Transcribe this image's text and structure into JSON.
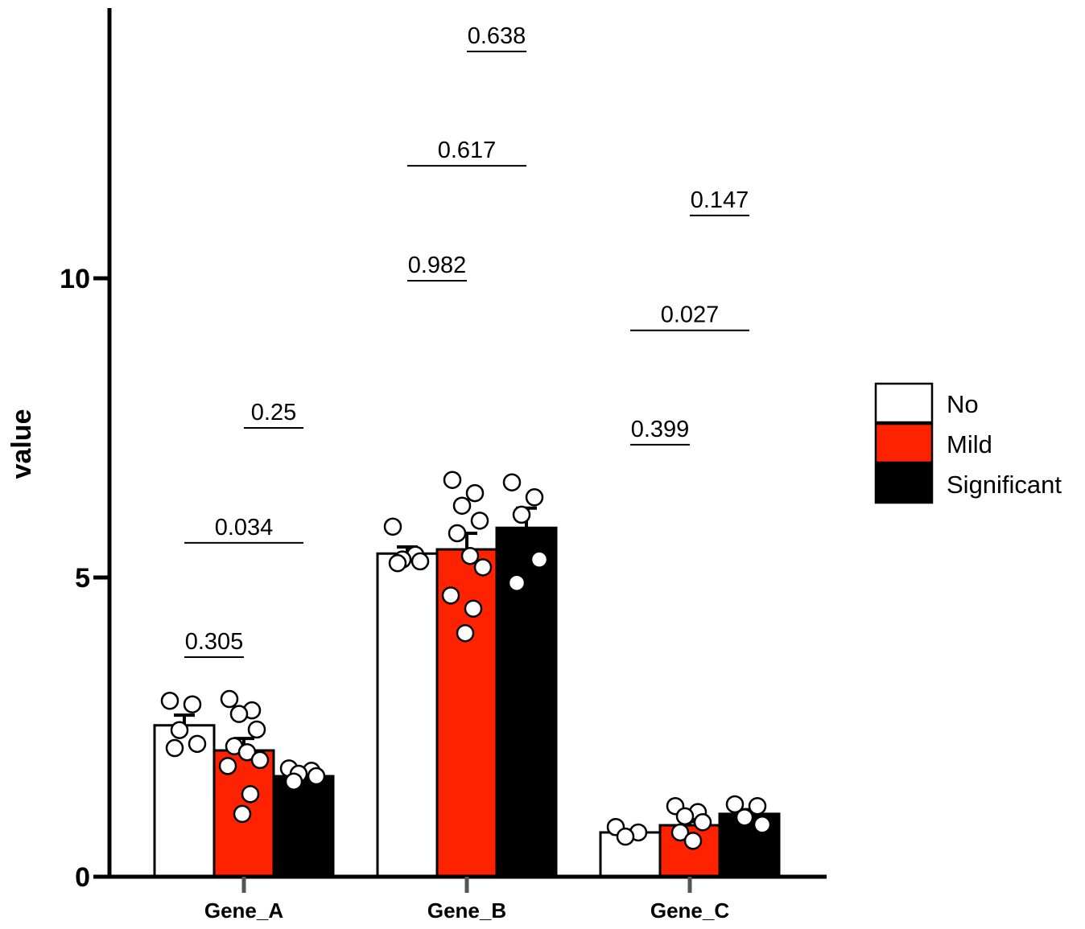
{
  "chart_data": {
    "type": "bar",
    "title": "",
    "xlabel": "",
    "ylabel": "value",
    "ylim": [
      0,
      14.5
    ],
    "yticks": [
      0,
      5,
      10
    ],
    "ytick_labels": [
      "0",
      "5",
      "10"
    ],
    "categories": [
      "Gene_A",
      "Gene_B",
      "Gene_C"
    ],
    "legend_position": "right",
    "series": [
      {
        "name": "No",
        "color": "#ffffff",
        "values": [
          2.53,
          5.4,
          0.74
        ],
        "error": [
          0.17,
          0.11,
          0.04
        ],
        "points": [
          [
            2.94,
            2.88,
            2.45,
            2.22,
            2.15
          ],
          [
            5.85,
            5.38,
            5.3,
            5.27,
            5.24
          ],
          [
            0.83,
            0.74,
            0.67
          ]
        ]
      },
      {
        "name": "Mild",
        "color": "#ff2200",
        "values": [
          2.11,
          5.47,
          0.86
        ],
        "error": [
          0.2,
          0.27,
          0.06
        ],
        "points": [
          [
            2.97,
            2.78,
            2.72,
            2.46,
            2.18,
            2.08,
            1.95,
            1.85,
            1.38,
            1.05
          ],
          [
            6.63,
            6.41,
            6.2,
            5.95,
            5.74,
            5.36,
            5.17,
            4.7,
            4.48,
            4.07
          ],
          [
            1.18,
            1.08,
            1.01,
            0.91,
            0.74,
            0.6
          ]
        ]
      },
      {
        "name": "Significant",
        "color": "#000000",
        "values": [
          1.68,
          5.83,
          1.05
        ],
        "error": [
          0.05,
          0.33,
          0.07
        ],
        "points": [
          [
            1.81,
            1.77,
            1.72,
            1.68,
            1.59
          ],
          [
            6.59,
            6.34,
            6.05,
            5.3,
            4.91
          ],
          [
            1.21,
            1.18,
            0.99,
            0.87
          ]
        ]
      }
    ],
    "annotations": [
      {
        "category": "Gene_A",
        "from": "No",
        "to": "Mild",
        "y": 3.67,
        "label": "0.305"
      },
      {
        "category": "Gene_A",
        "from": "No",
        "to": "Significant",
        "y": 5.58,
        "label": "0.034"
      },
      {
        "category": "Gene_A",
        "from": "Mild",
        "to": "Significant",
        "y": 7.5,
        "label": "0.25"
      },
      {
        "category": "Gene_B",
        "from": "No",
        "to": "Mild",
        "y": 9.96,
        "label": "0.982"
      },
      {
        "category": "Gene_B",
        "from": "No",
        "to": "Significant",
        "y": 11.88,
        "label": "0.617"
      },
      {
        "category": "Gene_B",
        "from": "Mild",
        "to": "Significant",
        "y": 13.79,
        "label": "0.638"
      },
      {
        "category": "Gene_C",
        "from": "No",
        "to": "Mild",
        "y": 7.22,
        "label": "0.399"
      },
      {
        "category": "Gene_C",
        "from": "No",
        "to": "Significant",
        "y": 9.13,
        "label": "0.027"
      },
      {
        "category": "Gene_C",
        "from": "Mild",
        "to": "Significant",
        "y": 11.05,
        "label": "0.147"
      }
    ]
  }
}
